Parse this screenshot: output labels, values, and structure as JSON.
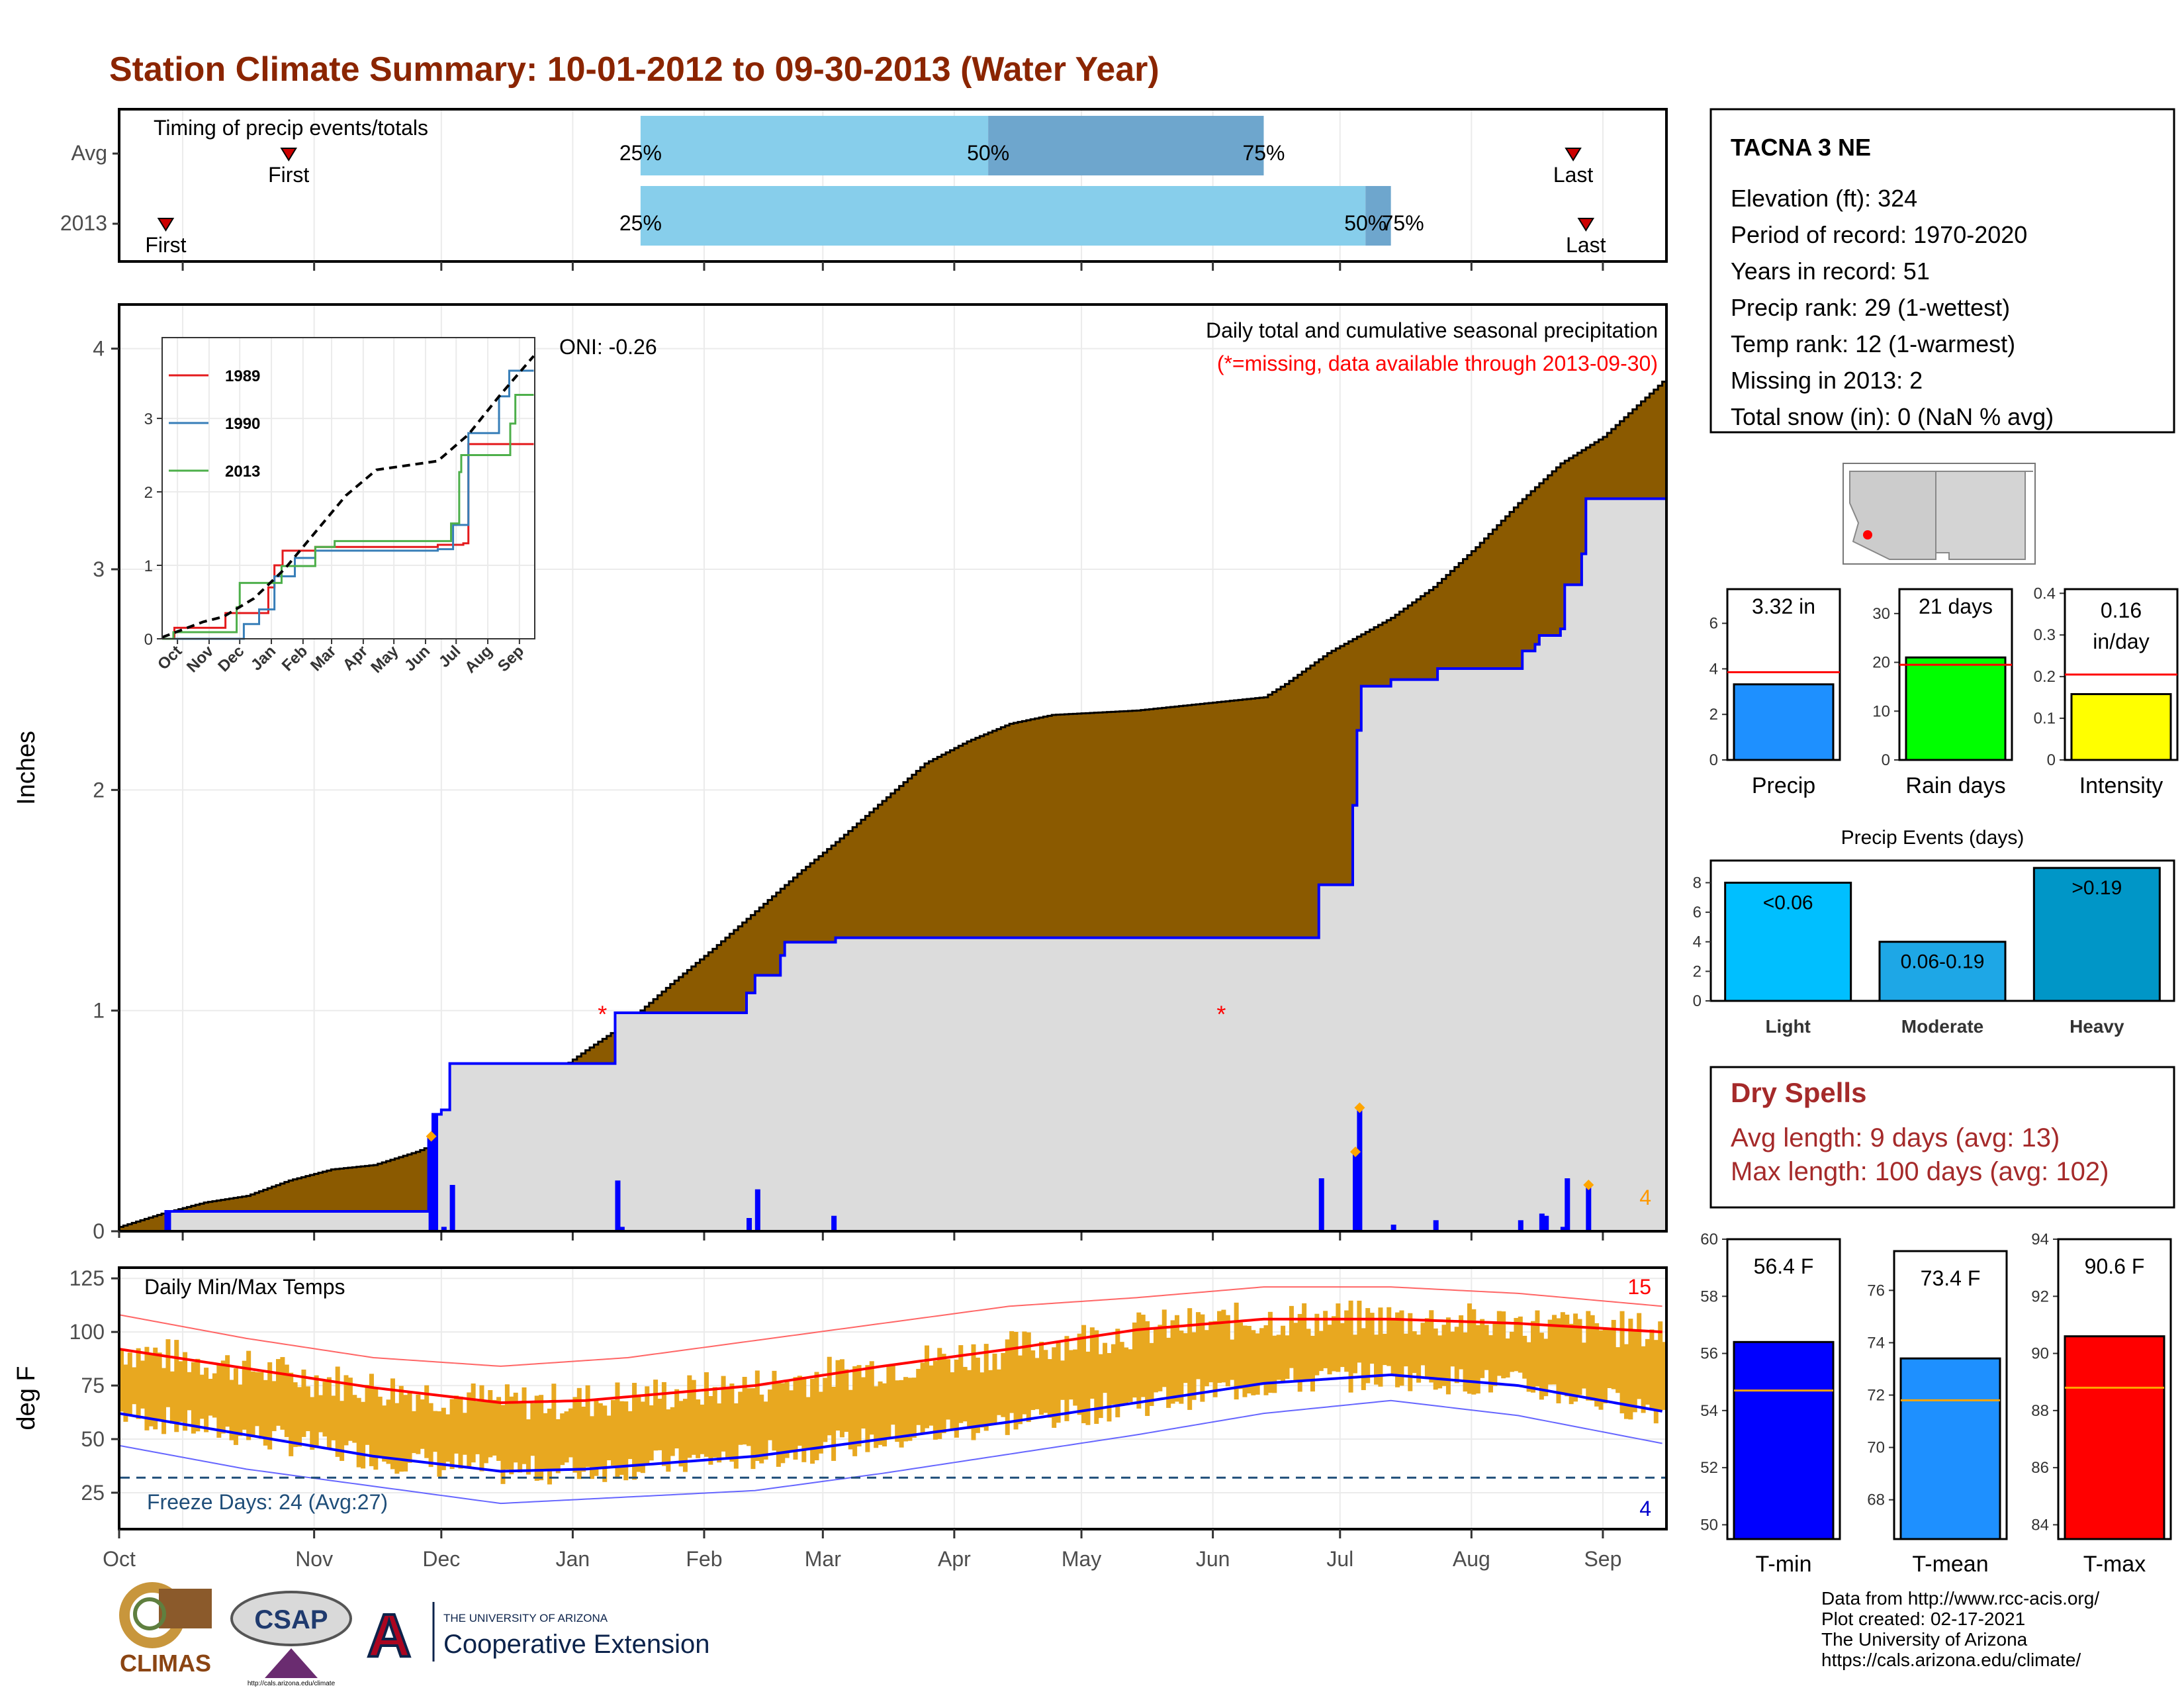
{
  "title": "Station Climate Summary: 10-01-2012 to 09-30-2013 (Water Year)",
  "months": [
    "Oct",
    "Nov",
    "Dec",
    "Jan",
    "Feb",
    "Mar",
    "Apr",
    "May",
    "Jun",
    "Jul",
    "Aug",
    "Sep"
  ],
  "month_starts": [
    0,
    31,
    61,
    92,
    123,
    151,
    182,
    212,
    243,
    273,
    304,
    335
  ],
  "timing": {
    "label": "Timing of precip events/totals",
    "rows": [
      {
        "name": "Avg",
        "first_day": 40,
        "p25_day": 123,
        "p50_day": 205,
        "p75_day": 270,
        "last_day": 343,
        "first_label": "First",
        "last_label": "Last",
        "p25_label": "25%",
        "p50_label": "50%",
        "p75_label": "75%"
      },
      {
        "name": "2013",
        "first_day": 11,
        "p25_day": 123,
        "p50_day": 294,
        "p75_day": 300,
        "last_day": 346,
        "first_label": "First",
        "last_label": "Last",
        "p25_label": "25%",
        "p50_label": "50%",
        "p75_label": "75%"
      }
    ]
  },
  "precip_panel": {
    "ylabel": "Inches",
    "yticks": [
      0,
      1,
      2,
      3,
      4
    ],
    "ylim": [
      0,
      4.2
    ],
    "title": "Daily total and cumulative seasonal precipitation",
    "subtitle": "(*=missing, data available through 2013-09-30)",
    "oni": "ONI: -0.26",
    "count_label": "4",
    "missing_marks": [
      {
        "day": 114,
        "value": 1.0
      },
      {
        "day": 260,
        "value": 1.0
      }
    ],
    "avg_cumulative": [
      [
        0,
        0.02
      ],
      [
        10,
        0.08
      ],
      [
        20,
        0.13
      ],
      [
        30,
        0.16
      ],
      [
        40,
        0.23
      ],
      [
        50,
        0.28
      ],
      [
        60,
        0.3
      ],
      [
        70,
        0.36
      ],
      [
        80,
        0.44
      ],
      [
        90,
        0.55
      ],
      [
        100,
        0.68
      ],
      [
        110,
        0.82
      ],
      [
        120,
        0.95
      ],
      [
        130,
        1.12
      ],
      [
        140,
        1.28
      ],
      [
        150,
        1.45
      ],
      [
        160,
        1.62
      ],
      [
        170,
        1.78
      ],
      [
        180,
        1.95
      ],
      [
        190,
        2.12
      ],
      [
        200,
        2.22
      ],
      [
        210,
        2.3
      ],
      [
        220,
        2.34
      ],
      [
        230,
        2.35
      ],
      [
        240,
        2.36
      ],
      [
        250,
        2.38
      ],
      [
        260,
        2.4
      ],
      [
        270,
        2.42
      ],
      [
        275,
        2.48
      ],
      [
        285,
        2.62
      ],
      [
        300,
        2.78
      ],
      [
        310,
        2.92
      ],
      [
        320,
        3.1
      ],
      [
        330,
        3.3
      ],
      [
        340,
        3.48
      ],
      [
        350,
        3.6
      ],
      [
        364,
        3.85
      ]
    ],
    "cumulative_2013": [
      [
        0,
        0.0
      ],
      [
        10,
        0.0
      ],
      [
        11,
        0.09
      ],
      [
        72,
        0.09
      ],
      [
        73,
        0.43
      ],
      [
        74,
        0.53
      ],
      [
        76,
        0.55
      ],
      [
        78,
        0.76
      ],
      [
        116,
        0.76
      ],
      [
        117,
        0.99
      ],
      [
        147,
        0.99
      ],
      [
        148,
        1.08
      ],
      [
        150,
        1.16
      ],
      [
        156,
        1.25
      ],
      [
        157,
        1.31
      ],
      [
        168,
        1.31
      ],
      [
        169,
        1.33
      ],
      [
        282,
        1.33
      ],
      [
        283,
        1.57
      ],
      [
        290,
        1.57
      ],
      [
        291,
        1.93
      ],
      [
        292,
        2.27
      ],
      [
        293,
        2.47
      ],
      [
        300,
        2.5
      ],
      [
        310,
        2.5
      ],
      [
        311,
        2.55
      ],
      [
        330,
        2.55
      ],
      [
        331,
        2.63
      ],
      [
        334,
        2.66
      ],
      [
        335,
        2.7
      ],
      [
        340,
        2.73
      ],
      [
        341,
        2.93
      ],
      [
        345,
        3.07
      ],
      [
        346,
        3.32
      ],
      [
        364,
        3.32
      ]
    ],
    "daily_bars": [
      [
        11,
        0.09
      ],
      [
        73,
        0.43
      ],
      [
        74,
        0.53
      ],
      [
        76,
        0.02
      ],
      [
        78,
        0.21
      ],
      [
        117,
        0.23
      ],
      [
        118,
        0.02
      ],
      [
        148,
        0.06
      ],
      [
        150,
        0.19
      ],
      [
        168,
        0.07
      ],
      [
        283,
        0.24
      ],
      [
        291,
        0.36
      ],
      [
        292,
        0.56
      ],
      [
        300,
        0.03
      ],
      [
        310,
        0.05
      ],
      [
        330,
        0.05
      ],
      [
        335,
        0.08
      ],
      [
        336,
        0.07
      ],
      [
        340,
        0.02
      ],
      [
        341,
        0.24
      ],
      [
        346,
        0.21
      ]
    ],
    "diamond_marks": [
      [
        73,
        0.43
      ],
      [
        292,
        0.56
      ],
      [
        291,
        0.36
      ],
      [
        346,
        0.21
      ]
    ]
  },
  "inset": {
    "yticks": [
      0,
      1,
      2,
      3
    ],
    "months": [
      "Oct",
      "Nov",
      "Dec",
      "Jan",
      "Feb",
      "Mar",
      "Apr",
      "May",
      "Jun",
      "Jul",
      "Aug",
      "Sep"
    ],
    "legend": [
      {
        "name": "1989",
        "color": "#e41a1c"
      },
      {
        "name": "1990",
        "color": "#377eb8"
      },
      {
        "name": "2013",
        "color": "#4daf4a"
      }
    ],
    "series_1989": [
      [
        0,
        0
      ],
      [
        10,
        0.0
      ],
      [
        12,
        0.15
      ],
      [
        60,
        0.15
      ],
      [
        62,
        0.35
      ],
      [
        100,
        0.35
      ],
      [
        104,
        0.7
      ],
      [
        110,
        1.0
      ],
      [
        118,
        1.2
      ],
      [
        150,
        1.25
      ],
      [
        270,
        1.28
      ],
      [
        295,
        1.3
      ],
      [
        300,
        2.65
      ],
      [
        364,
        2.65
      ]
    ],
    "series_1990": [
      [
        0,
        0
      ],
      [
        75,
        0.0
      ],
      [
        80,
        0.2
      ],
      [
        95,
        0.4
      ],
      [
        110,
        0.85
      ],
      [
        130,
        1.1
      ],
      [
        150,
        1.2
      ],
      [
        270,
        1.22
      ],
      [
        285,
        1.55
      ],
      [
        300,
        2.8
      ],
      [
        330,
        3.3
      ],
      [
        340,
        3.65
      ],
      [
        364,
        3.65
      ]
    ],
    "series_2013": [
      [
        0,
        0
      ],
      [
        11,
        0.09
      ],
      [
        73,
        0.43
      ],
      [
        76,
        0.76
      ],
      [
        117,
        0.99
      ],
      [
        150,
        1.25
      ],
      [
        169,
        1.33
      ],
      [
        283,
        1.57
      ],
      [
        291,
        2.27
      ],
      [
        293,
        2.5
      ],
      [
        341,
        2.93
      ],
      [
        346,
        3.32
      ],
      [
        364,
        3.32
      ]
    ],
    "series_avg": [
      [
        0,
        0.02
      ],
      [
        40,
        0.23
      ],
      [
        60,
        0.3
      ],
      [
        90,
        0.55
      ],
      [
        120,
        0.95
      ],
      [
        150,
        1.45
      ],
      [
        180,
        1.95
      ],
      [
        210,
        2.3
      ],
      [
        240,
        2.36
      ],
      [
        270,
        2.42
      ],
      [
        300,
        2.78
      ],
      [
        330,
        3.3
      ],
      [
        364,
        3.85
      ]
    ]
  },
  "temp_panel": {
    "ylabel": "deg F",
    "title": "Daily Min/Max Temps",
    "yticks": [
      25,
      50,
      75,
      100,
      125
    ],
    "ylim": [
      8,
      130
    ],
    "freeze_label": "Freeze Days: 24 (Avg:27)",
    "freeze_line": 32,
    "max_count": "15",
    "min_count": "4",
    "avg_max": [
      [
        0,
        92
      ],
      [
        30,
        83
      ],
      [
        60,
        74
      ],
      [
        90,
        67
      ],
      [
        110,
        68
      ],
      [
        150,
        75
      ],
      [
        180,
        84
      ],
      [
        210,
        92
      ],
      [
        240,
        101
      ],
      [
        270,
        106
      ],
      [
        300,
        106
      ],
      [
        330,
        104
      ],
      [
        364,
        100
      ]
    ],
    "avg_min": [
      [
        0,
        62
      ],
      [
        30,
        52
      ],
      [
        60,
        42
      ],
      [
        90,
        35
      ],
      [
        110,
        36
      ],
      [
        150,
        42
      ],
      [
        180,
        50
      ],
      [
        210,
        58
      ],
      [
        240,
        67
      ],
      [
        270,
        76
      ],
      [
        300,
        80
      ],
      [
        330,
        75
      ],
      [
        364,
        63
      ]
    ],
    "rec_max": [
      [
        0,
        108
      ],
      [
        30,
        97
      ],
      [
        60,
        88
      ],
      [
        90,
        84
      ],
      [
        120,
        88
      ],
      [
        150,
        96
      ],
      [
        180,
        104
      ],
      [
        210,
        112
      ],
      [
        240,
        116
      ],
      [
        270,
        121
      ],
      [
        300,
        121
      ],
      [
        330,
        118
      ],
      [
        364,
        112
      ]
    ],
    "rec_min": [
      [
        0,
        47
      ],
      [
        30,
        36
      ],
      [
        60,
        28
      ],
      [
        90,
        20
      ],
      [
        110,
        22
      ],
      [
        150,
        26
      ],
      [
        180,
        34
      ],
      [
        210,
        43
      ],
      [
        240,
        52
      ],
      [
        270,
        62
      ],
      [
        300,
        68
      ],
      [
        330,
        61
      ],
      [
        364,
        48
      ]
    ]
  },
  "station": {
    "name": "TACNA 3 NE",
    "lines": [
      "Elevation (ft): 324",
      "Period of record: 1970-2020",
      "Years in record: 51",
      "Precip rank: 29 (1-wettest)",
      "Temp rank: 12 (1-warmest)",
      "Missing in 2013: 2",
      "Total snow (in): 0 (NaN % avg)"
    ]
  },
  "summary_bars": [
    {
      "name": "Precip",
      "label": "3.32 in",
      "value": 3.32,
      "avg": 3.85,
      "ylim": [
        0,
        7.5
      ],
      "yticks": [
        0,
        2,
        4,
        6
      ],
      "color": "#1e90ff"
    },
    {
      "name": "Rain days",
      "label": "21 days",
      "value": 21,
      "avg": 19.5,
      "ylim": [
        0,
        35
      ],
      "yticks": [
        0,
        10,
        20,
        30
      ],
      "color": "#00ff00"
    },
    {
      "name": "Intensity",
      "label": "0.16 in/day",
      "value": 0.158,
      "avg": 0.205,
      "ylim": [
        0,
        0.41
      ],
      "yticks": [
        0.0,
        0.1,
        0.2,
        0.3,
        0.4
      ],
      "color": "#ffff00"
    }
  ],
  "precip_events": {
    "title": "Precip Events (days)",
    "categories": [
      "Light",
      "Moderate",
      "Heavy"
    ],
    "labels": [
      "<0.06",
      "0.06-0.19",
      ">0.19"
    ],
    "values": [
      8,
      4,
      9
    ],
    "yticks": [
      0,
      2,
      4,
      6,
      8
    ],
    "ylim": [
      0,
      9.5
    ],
    "colors": [
      "#00bfff",
      "#1ea7e6",
      "#0096c7"
    ]
  },
  "dry_spells": {
    "title": "Dry Spells",
    "avg_line": "Avg length: 9 days (avg: 13)",
    "max_line": "Max length: 100 days (avg: 102)"
  },
  "temp_bars": [
    {
      "name": "T-min",
      "label": "56.4 F",
      "value": 56.4,
      "avg": 54.7,
      "ylim": [
        49.5,
        60
      ],
      "yticks": [
        50,
        52,
        54,
        56,
        58,
        60
      ],
      "color": "#0000ff"
    },
    {
      "name": "T-mean",
      "label": "73.4 F",
      "value": 73.4,
      "avg": 71.8,
      "ylim": [
        66.5,
        77.5
      ],
      "yticks": [
        68,
        70,
        72,
        74,
        76
      ],
      "color": "#1e90ff"
    },
    {
      "name": "T-max",
      "label": "90.6 F",
      "value": 90.6,
      "avg": 88.8,
      "ylim": [
        83.5,
        94
      ],
      "yticks": [
        84,
        86,
        88,
        90,
        92,
        94
      ],
      "color": "#ff0000"
    }
  ],
  "credits": [
    "Data from http://www.rcc-acis.org/",
    "Plot created: 02-17-2021",
    "The University of Arizona",
    "https://cals.arizona.edu/climate/"
  ],
  "logos": {
    "climas": "CLIMAS",
    "csap": "CSAP",
    "csap_url": "http://cals.arizona.edu/climate",
    "ua_line1": "THE UNIVERSITY OF ARIZONA",
    "ua_line2": "Cooperative Extension",
    "ua_letter": "A"
  }
}
